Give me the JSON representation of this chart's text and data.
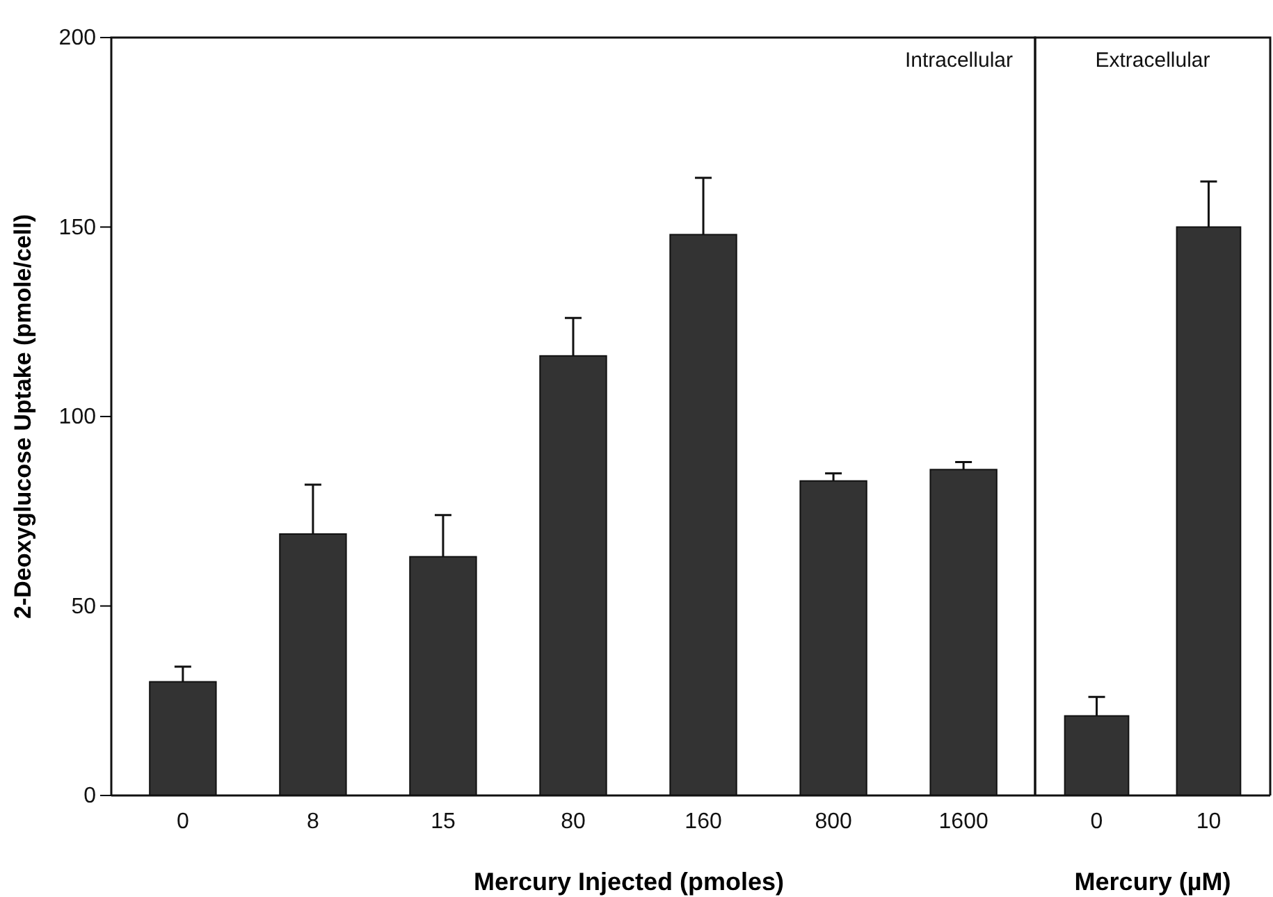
{
  "chart_data": [
    {
      "type": "bar",
      "ylabel": "2-Deoxyglucose Uptake (pmole/cell)",
      "xlabel": "Mercury Injected (pmoles)",
      "annotations": [
        "Intracellular"
      ],
      "categories": [
        "0",
        "8",
        "15",
        "80",
        "160",
        "800",
        "1600"
      ],
      "values": [
        30,
        69,
        63,
        116,
        148,
        83,
        86
      ],
      "errors": [
        [
          30,
          34
        ],
        [
          69,
          82
        ],
        [
          63,
          74
        ],
        [
          116,
          126
        ],
        [
          148,
          163
        ],
        [
          83,
          85
        ],
        [
          86,
          88
        ]
      ],
      "color": "#333333",
      "ylim": [
        0,
        200
      ],
      "yticks": [
        0,
        50,
        100,
        150,
        200
      ],
      "grid": false
    },
    {
      "type": "bar",
      "xlabel": "Mercury  (µM)",
      "annotations": [
        "Extracellular"
      ],
      "categories": [
        "0",
        "10"
      ],
      "values": [
        21,
        150
      ],
      "errors": [
        [
          21,
          26
        ],
        [
          150,
          162
        ]
      ],
      "color": "#333333",
      "ylim": [
        0,
        200
      ],
      "yticks": [
        0,
        50,
        100,
        150,
        200
      ],
      "tick_labels": "x",
      "grid": false
    }
  ]
}
